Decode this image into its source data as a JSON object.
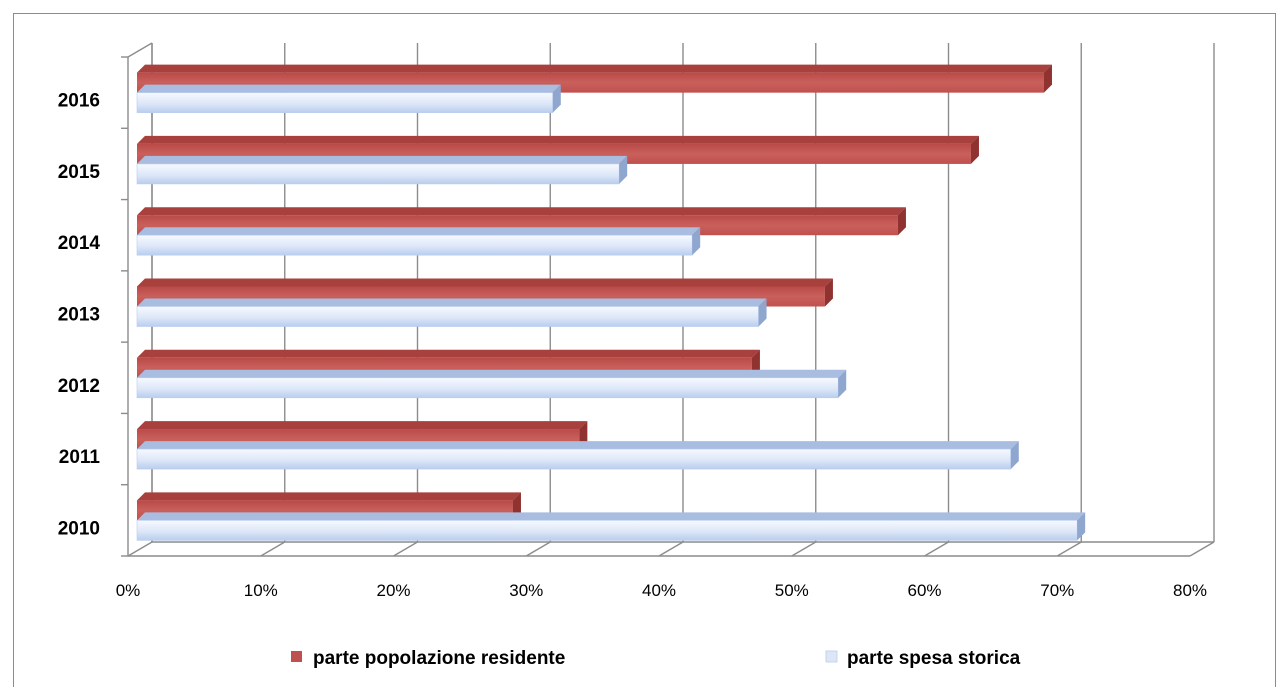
{
  "chart_data": {
    "type": "bar",
    "orientation": "horizontal",
    "categories": [
      "2010",
      "2011",
      "2012",
      "2013",
      "2014",
      "2015",
      "2016"
    ],
    "series": [
      {
        "name": "parte popolazione residente",
        "values": [
          29,
          34,
          47,
          52.5,
          58,
          63.5,
          69
        ],
        "color": "#c0504d"
      },
      {
        "name": "parte spesa storica",
        "values": [
          71.5,
          66.5,
          53.5,
          47.5,
          42.5,
          37,
          32
        ],
        "color": "#dce6f7"
      }
    ],
    "x_ticks": [
      "0%",
      "10%",
      "20%",
      "30%",
      "40%",
      "50%",
      "60%",
      "70%",
      "80%"
    ],
    "xlim": [
      0,
      80
    ],
    "grid": true,
    "legend_position": "bottom"
  }
}
